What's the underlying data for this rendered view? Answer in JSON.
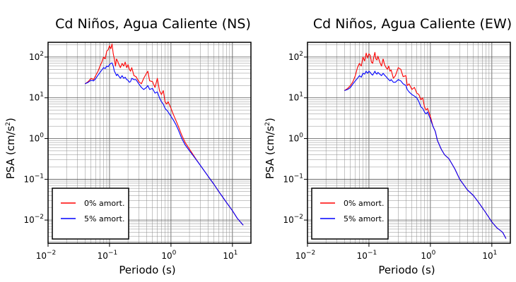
{
  "chart_data": [
    {
      "type": "line",
      "title": "Cd Niños, Agua Caliente (NS)",
      "xlabel": "Periodo (s)",
      "ylabel_main": "PSA (cm/s",
      "ylabel_sup": "2",
      "ylabel_close": ")",
      "x_scale": "log",
      "y_scale": "log",
      "xlim": [
        0.01,
        20
      ],
      "ylim": [
        0.0027,
        230
      ],
      "grid": true,
      "legend_position": "bottom-left",
      "x_ticks": [
        {
          "base": "10",
          "exp": "−2",
          "value": 0.01
        },
        {
          "base": "10",
          "exp": "−1",
          "value": 0.1
        },
        {
          "base": "10",
          "exp": "0",
          "value": 1
        },
        {
          "base": "10",
          "exp": "1",
          "value": 10
        }
      ],
      "y_ticks": [
        {
          "base": "10",
          "exp": "−2",
          "value": 0.01
        },
        {
          "base": "10",
          "exp": "−1",
          "value": 0.1
        },
        {
          "base": "10",
          "exp": "0",
          "value": 1
        },
        {
          "base": "10",
          "exp": "1",
          "value": 10
        },
        {
          "base": "10",
          "exp": "2",
          "value": 100
        }
      ],
      "series": [
        {
          "name": "0% amort.",
          "color": "#ff0000",
          "x": [
            0.04,
            0.045,
            0.05,
            0.055,
            0.06,
            0.065,
            0.07,
            0.075,
            0.08,
            0.085,
            0.09,
            0.095,
            0.1,
            0.105,
            0.11,
            0.115,
            0.12,
            0.125,
            0.13,
            0.135,
            0.14,
            0.15,
            0.16,
            0.17,
            0.18,
            0.19,
            0.2,
            0.21,
            0.22,
            0.23,
            0.25,
            0.27,
            0.3,
            0.33,
            0.36,
            0.4,
            0.42,
            0.45,
            0.5,
            0.55,
            0.6,
            0.65,
            0.7,
            0.75,
            0.8,
            0.85,
            0.9,
            1.0,
            1.1,
            1.2,
            1.3,
            1.5,
            1.7,
            2.0,
            2.5,
            3.0,
            4.0,
            5.0,
            6.0,
            7.0,
            8.0,
            10.0,
            12.0,
            15.0
          ],
          "y": [
            22,
            25,
            30,
            28,
            36,
            45,
            60,
            75,
            100,
            90,
            140,
            150,
            190,
            160,
            210,
            120,
            90,
            60,
            90,
            80,
            70,
            55,
            70,
            60,
            75,
            55,
            65,
            50,
            45,
            55,
            35,
            33,
            25,
            22,
            30,
            40,
            45,
            26,
            25,
            18,
            30,
            15,
            12,
            15,
            8,
            7,
            8,
            5.5,
            3.8,
            2.8,
            2.1,
            1.2,
            0.8,
            0.55,
            0.33,
            0.22,
            0.12,
            0.075,
            0.05,
            0.036,
            0.027,
            0.017,
            0.011,
            0.0075
          ]
        },
        {
          "name": "5% amort.",
          "color": "#0000ff",
          "x": [
            0.04,
            0.045,
            0.05,
            0.055,
            0.06,
            0.065,
            0.07,
            0.075,
            0.08,
            0.085,
            0.09,
            0.095,
            0.1,
            0.105,
            0.11,
            0.115,
            0.12,
            0.125,
            0.13,
            0.135,
            0.14,
            0.15,
            0.16,
            0.17,
            0.18,
            0.19,
            0.2,
            0.21,
            0.22,
            0.23,
            0.25,
            0.27,
            0.3,
            0.33,
            0.36,
            0.4,
            0.42,
            0.45,
            0.5,
            0.55,
            0.6,
            0.65,
            0.7,
            0.75,
            0.8,
            0.85,
            0.9,
            1.0,
            1.1,
            1.2,
            1.3,
            1.5,
            1.7,
            2.0,
            2.5,
            3.0,
            4.0,
            5.0,
            6.0,
            7.0,
            8.0,
            10.0,
            12.0,
            15.0
          ],
          "y": [
            22,
            24,
            27,
            26,
            30,
            36,
            42,
            48,
            55,
            52,
            60,
            58,
            65,
            70,
            72,
            60,
            45,
            40,
            35,
            38,
            35,
            30,
            35,
            30,
            32,
            28,
            27,
            24,
            25,
            30,
            28,
            28,
            22,
            18,
            16,
            18,
            20,
            16,
            17,
            13,
            14,
            10,
            8,
            7,
            5.5,
            5,
            4.5,
            3.5,
            2.8,
            2.2,
            1.7,
            1.0,
            0.7,
            0.5,
            0.32,
            0.22,
            0.12,
            0.075,
            0.05,
            0.036,
            0.027,
            0.017,
            0.011,
            0.0075
          ]
        }
      ]
    },
    {
      "type": "line",
      "title": "Cd Niños, Agua Caliente (EW)",
      "xlabel": "Periodo (s)",
      "ylabel_main": "PSA (cm/s",
      "ylabel_sup": "2",
      "ylabel_close": ")",
      "x_scale": "log",
      "y_scale": "log",
      "xlim": [
        0.01,
        20
      ],
      "ylim": [
        0.0027,
        230
      ],
      "grid": true,
      "legend_position": "bottom-left",
      "x_ticks": [
        {
          "base": "10",
          "exp": "−2",
          "value": 0.01
        },
        {
          "base": "10",
          "exp": "−1",
          "value": 0.1
        },
        {
          "base": "10",
          "exp": "0",
          "value": 1
        },
        {
          "base": "10",
          "exp": "1",
          "value": 10
        }
      ],
      "y_ticks": [
        {
          "base": "10",
          "exp": "−2",
          "value": 0.01
        },
        {
          "base": "10",
          "exp": "−1",
          "value": 0.1
        },
        {
          "base": "10",
          "exp": "0",
          "value": 1
        },
        {
          "base": "10",
          "exp": "1",
          "value": 10
        },
        {
          "base": "10",
          "exp": "2",
          "value": 100
        }
      ],
      "series": [
        {
          "name": "0% amort.",
          "color": "#ff0000",
          "x": [
            0.04,
            0.045,
            0.05,
            0.055,
            0.06,
            0.065,
            0.07,
            0.075,
            0.08,
            0.085,
            0.09,
            0.095,
            0.1,
            0.105,
            0.11,
            0.115,
            0.12,
            0.125,
            0.13,
            0.135,
            0.14,
            0.15,
            0.16,
            0.17,
            0.18,
            0.19,
            0.2,
            0.21,
            0.22,
            0.23,
            0.25,
            0.27,
            0.3,
            0.33,
            0.36,
            0.4,
            0.42,
            0.45,
            0.5,
            0.55,
            0.6,
            0.65,
            0.7,
            0.75,
            0.8,
            0.85,
            0.9,
            1.0,
            1.1,
            1.2,
            1.3,
            1.5,
            1.7,
            2.0,
            2.5,
            3.0,
            4.0,
            5.0,
            6.0,
            7.0,
            8.0,
            10.0,
            12.0,
            15.0,
            17.0
          ],
          "y": [
            15,
            17,
            20,
            25,
            35,
            55,
            70,
            60,
            100,
            80,
            125,
            95,
            120,
            110,
            75,
            70,
            100,
            130,
            90,
            85,
            105,
            75,
            60,
            90,
            65,
            55,
            50,
            60,
            45,
            48,
            30,
            35,
            55,
            50,
            33,
            35,
            20,
            22,
            16,
            18,
            13,
            12,
            9,
            10,
            6,
            5,
            5.5,
            3.5,
            2.0,
            1.5,
            0.9,
            0.55,
            0.4,
            0.32,
            0.18,
            0.1,
            0.055,
            0.04,
            0.028,
            0.02,
            0.015,
            0.009,
            0.0065,
            0.005,
            0.0035
          ]
        },
        {
          "name": "5% amort.",
          "color": "#0000ff",
          "x": [
            0.04,
            0.045,
            0.05,
            0.055,
            0.06,
            0.065,
            0.07,
            0.075,
            0.08,
            0.085,
            0.09,
            0.095,
            0.1,
            0.105,
            0.11,
            0.115,
            0.12,
            0.125,
            0.13,
            0.135,
            0.14,
            0.15,
            0.16,
            0.17,
            0.18,
            0.19,
            0.2,
            0.21,
            0.22,
            0.23,
            0.25,
            0.27,
            0.3,
            0.33,
            0.36,
            0.4,
            0.42,
            0.45,
            0.5,
            0.55,
            0.6,
            0.65,
            0.7,
            0.75,
            0.8,
            0.85,
            0.9,
            1.0,
            1.1,
            1.2,
            1.3,
            1.5,
            1.7,
            2.0,
            2.5,
            3.0,
            4.0,
            5.0,
            6.0,
            7.0,
            8.0,
            10.0,
            12.0,
            15.0,
            17.0
          ],
          "y": [
            15,
            16,
            18,
            22,
            26,
            30,
            35,
            32,
            40,
            38,
            45,
            40,
            45,
            42,
            38,
            36,
            40,
            45,
            40,
            38,
            42,
            38,
            35,
            40,
            36,
            33,
            30,
            28,
            26,
            28,
            24,
            24,
            28,
            26,
            22,
            20,
            16,
            14,
            12,
            11,
            10,
            8,
            6,
            5.5,
            4.5,
            4,
            4.5,
            3,
            2.0,
            1.5,
            0.9,
            0.55,
            0.4,
            0.32,
            0.18,
            0.1,
            0.055,
            0.04,
            0.028,
            0.02,
            0.015,
            0.009,
            0.0065,
            0.005,
            0.0035
          ]
        }
      ]
    }
  ]
}
